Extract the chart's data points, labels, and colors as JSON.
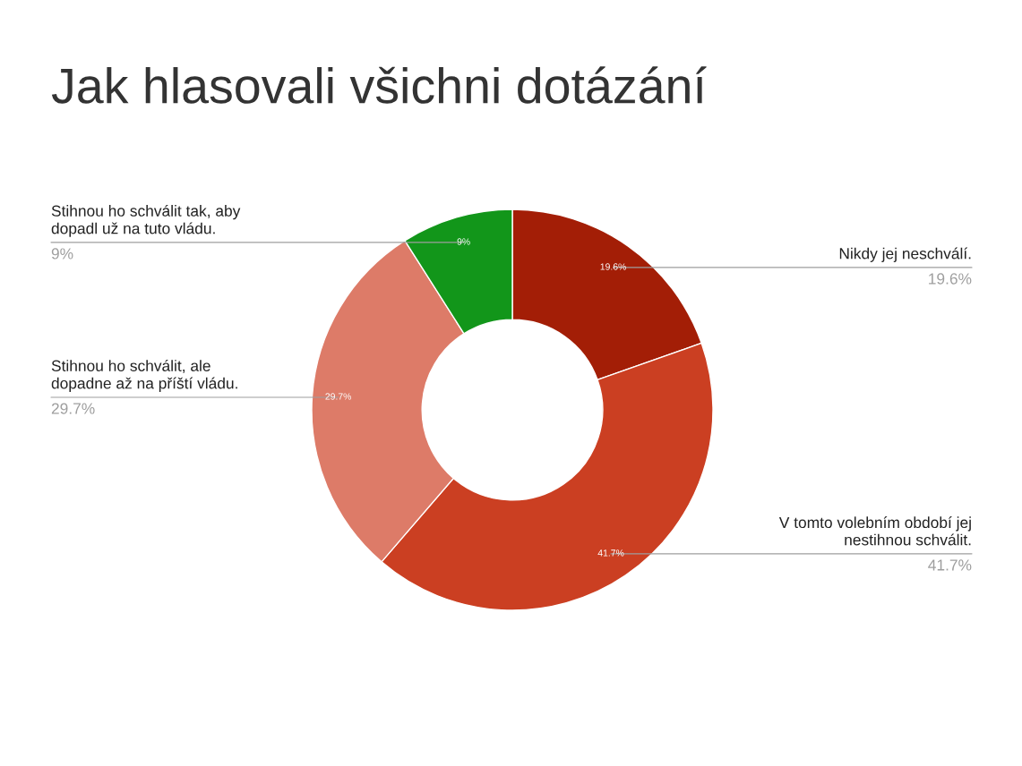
{
  "chart_data": {
    "type": "donut",
    "title": "Jak hlasovali všichni dotázání",
    "categories": [
      "Nikdy jej neschválí.",
      "V tomto volebním období jej nestihnou schválit.",
      "Stihnou ho schválit, ale dopadne až na příští vládu.",
      "Stihnou ho schválit tak, aby dopadl už na tuto vládu."
    ],
    "values": [
      19.6,
      41.7,
      29.7,
      9
    ],
    "colors": [
      "#a31e06",
      "#cb3f22",
      "#dd7b68",
      "#12961a"
    ],
    "value_labels": [
      "19.6%",
      "41.7%",
      "29.7%",
      "9%"
    ],
    "legend": false
  }
}
